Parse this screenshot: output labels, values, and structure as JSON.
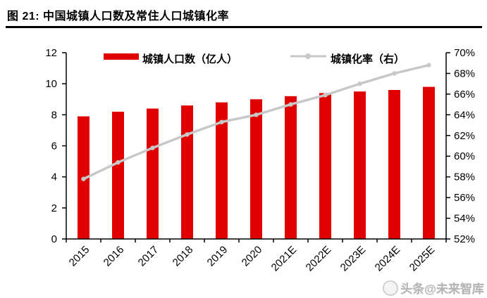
{
  "figure": {
    "title": "图 21: 中国城镇人口数及常住人口城镇化率"
  },
  "watermark": {
    "text": "头条@未来智库"
  },
  "colors": {
    "bar": "#e10000",
    "line": "#c8c8c8",
    "axis": "#000000",
    "background": "#ffffff"
  },
  "chart_data": {
    "type": "bar",
    "subtype": "combo-bar-line-dual-axis",
    "title": "中国城镇人口数及常住人口城镇化率",
    "categories": [
      "2015",
      "2016",
      "2017",
      "2018",
      "2019",
      "2020",
      "2021E",
      "2022E",
      "2023E",
      "2024E",
      "2025E"
    ],
    "series": [
      {
        "name": "城镇人口数（亿人）",
        "type": "bar",
        "axis": "left",
        "color": "#e10000",
        "values": [
          7.9,
          8.2,
          8.4,
          8.6,
          8.8,
          9.0,
          9.2,
          9.4,
          9.5,
          9.6,
          9.8
        ]
      },
      {
        "name": "城镇化率（右）",
        "type": "line",
        "axis": "right",
        "color": "#c8c8c8",
        "values": [
          57.8,
          59.4,
          60.8,
          62.1,
          63.3,
          64.0,
          65.0,
          65.9,
          67.0,
          68.0,
          68.8
        ]
      }
    ],
    "left_axis": {
      "min": 0,
      "max": 12,
      "step": 2,
      "labels": [
        "0",
        "2",
        "4",
        "6",
        "8",
        "10",
        "12"
      ]
    },
    "right_axis": {
      "min": 52,
      "max": 70,
      "step": 2,
      "labels": [
        "52%",
        "54%",
        "56%",
        "58%",
        "60%",
        "62%",
        "64%",
        "66%",
        "68%",
        "70%"
      ]
    },
    "xlabel": "",
    "ylabel": "",
    "grid": false,
    "legend_position": "top"
  }
}
